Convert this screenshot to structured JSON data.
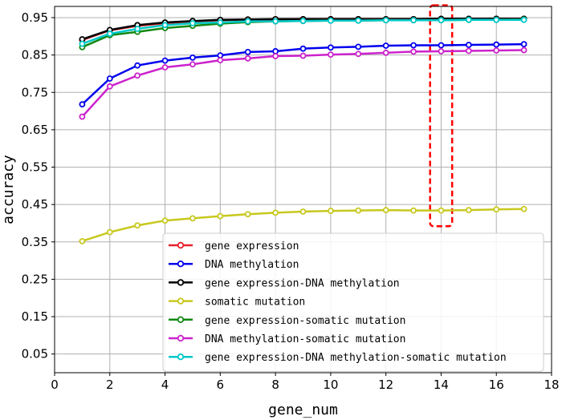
{
  "chart_data": {
    "type": "line",
    "title": "",
    "xlabel": "gene_num",
    "ylabel": "accuracy",
    "xlim": [
      0,
      18
    ],
    "ylim": [
      0.0,
      0.98
    ],
    "xticks": [
      0,
      2,
      4,
      6,
      8,
      10,
      12,
      14,
      16,
      18
    ],
    "yticks": [
      0.05,
      0.15,
      0.25,
      0.35,
      0.45,
      0.55,
      0.65,
      0.75,
      0.85,
      0.95
    ],
    "ytick_labels": [
      "0.05",
      "0.15",
      "0.25",
      "0.35",
      "0.45",
      "0.55",
      "0.65",
      "0.75",
      "0.85",
      "0.95"
    ],
    "grid": true,
    "legend_position": "lower-right",
    "x": [
      1,
      2,
      3,
      4,
      5,
      6,
      7,
      8,
      9,
      10,
      11,
      12,
      13,
      14,
      15,
      16,
      17
    ],
    "series": [
      {
        "name": "gene expression",
        "color": "#e8212a",
        "values": [
          0.89,
          0.916,
          0.928,
          0.935,
          0.94,
          0.943,
          0.945,
          0.945,
          0.946,
          0.946,
          0.946,
          0.946,
          0.946,
          0.946,
          0.946,
          0.947,
          0.947
        ]
      },
      {
        "name": "DNA methylation",
        "color": "#0000ee",
        "values": [
          0.718,
          0.787,
          0.822,
          0.835,
          0.843,
          0.849,
          0.858,
          0.86,
          0.867,
          0.87,
          0.872,
          0.875,
          0.876,
          0.876,
          0.877,
          0.878,
          0.879
        ]
      },
      {
        "name": "gene expression-DNA methylation",
        "color": "#000000",
        "values": [
          0.892,
          0.917,
          0.93,
          0.937,
          0.941,
          0.944,
          0.945,
          0.946,
          0.946,
          0.946,
          0.946,
          0.946,
          0.946,
          0.947,
          0.947,
          0.947,
          0.947
        ]
      },
      {
        "name": "somatic mutation",
        "color": "#c8c81e",
        "values": [
          0.352,
          0.376,
          0.394,
          0.407,
          0.413,
          0.419,
          0.424,
          0.428,
          0.431,
          0.433,
          0.434,
          0.435,
          0.434,
          0.434,
          0.435,
          0.437,
          0.438
        ]
      },
      {
        "name": "gene expression-somatic mutation",
        "color": "#118811",
        "values": [
          0.871,
          0.903,
          0.912,
          0.922,
          0.928,
          0.934,
          0.938,
          0.94,
          0.941,
          0.942,
          0.942,
          0.943,
          0.943,
          0.943,
          0.944,
          0.944,
          0.945
        ]
      },
      {
        "name": "DNA methylation-somatic mutation",
        "color": "#cc22cc",
        "values": [
          0.685,
          0.766,
          0.795,
          0.817,
          0.825,
          0.836,
          0.841,
          0.847,
          0.848,
          0.851,
          0.853,
          0.856,
          0.859,
          0.86,
          0.861,
          0.862,
          0.863
        ]
      },
      {
        "name": "gene expression-DNA methylation-somatic mutation",
        "color": "#00c8c8",
        "values": [
          0.88,
          0.907,
          0.92,
          0.93,
          0.935,
          0.937,
          0.94,
          0.94,
          0.941,
          0.942,
          0.942,
          0.943,
          0.943,
          0.943,
          0.944,
          0.944,
          0.944
        ]
      }
    ],
    "highlight": {
      "x_range": [
        13.6,
        14.4
      ],
      "y_range": [
        0.392,
        0.983
      ],
      "color": "#ff0000",
      "style": "dashed"
    }
  }
}
